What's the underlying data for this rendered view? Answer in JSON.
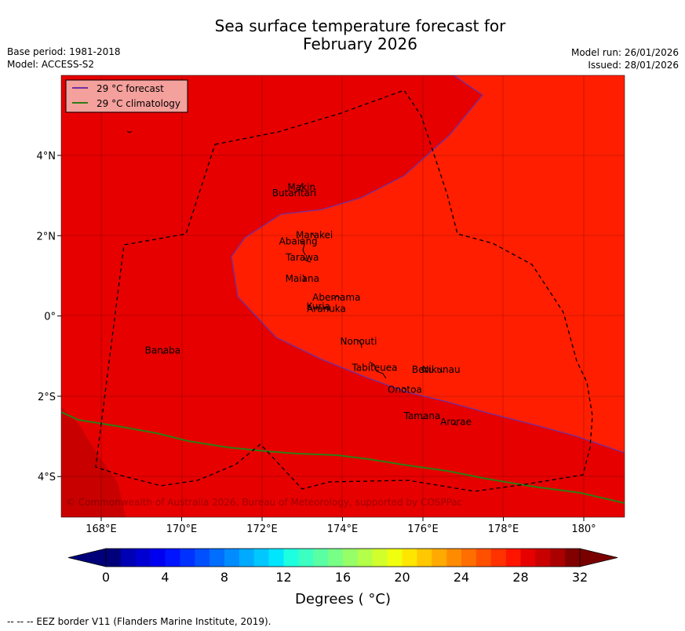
{
  "title_line1": "Sea surface temperature forecast for",
  "title_line2": "February 2026",
  "base_period": "Base period: 1981-2018",
  "model": "Model: ACCESS-S2",
  "model_run": "Model run: 26/01/2026",
  "issued": "Issued: 28/01/2026",
  "legend": {
    "forecast": "29 °C  forecast",
    "climatology": "29 °C  climatology",
    "forecast_color": "#7030a0",
    "climatology_color": "#2e7d14"
  },
  "lon_ticks": [
    "168°E",
    "170°E",
    "172°E",
    "174°E",
    "176°E",
    "178°E",
    "180°"
  ],
  "lat_ticks": [
    "4°N",
    "2°N",
    "0°",
    "2°S",
    "4°S"
  ],
  "islands": [
    {
      "name": "Makin",
      "lon": 172.98,
      "lat": 3.2
    },
    {
      "name": "Butaritari",
      "lon": 172.8,
      "lat": 3.05
    },
    {
      "name": "Marakei",
      "lon": 173.3,
      "lat": 2.0
    },
    {
      "name": "Abaiang",
      "lon": 172.9,
      "lat": 1.85
    },
    {
      "name": "Tarawa",
      "lon": 173.0,
      "lat": 1.45
    },
    {
      "name": "Maiana",
      "lon": 173.0,
      "lat": 0.92
    },
    {
      "name": "Abemama",
      "lon": 173.85,
      "lat": 0.45
    },
    {
      "name": "Kuria",
      "lon": 173.4,
      "lat": 0.22
    },
    {
      "name": "Aranuka",
      "lon": 173.6,
      "lat": 0.17
    },
    {
      "name": "Nonouti",
      "lon": 174.4,
      "lat": -0.65
    },
    {
      "name": "Tabiteuea",
      "lon": 174.8,
      "lat": -1.3
    },
    {
      "name": "Beru",
      "lon": 176.0,
      "lat": -1.35
    },
    {
      "name": "Nikunau",
      "lon": 176.45,
      "lat": -1.35
    },
    {
      "name": "Onotoa",
      "lon": 175.55,
      "lat": -1.85
    },
    {
      "name": "Tamana",
      "lon": 175.98,
      "lat": -2.5
    },
    {
      "name": "Arorae",
      "lon": 176.82,
      "lat": -2.65
    },
    {
      "name": "Banaba",
      "lon": 169.53,
      "lat": -0.87
    }
  ],
  "copyright": "© Commonwealth of Australia 2026, Bureau of Meteorology, supported by COSPPac",
  "colorbar": {
    "ticks": [
      "0",
      "4",
      "8",
      "12",
      "16",
      "20",
      "24",
      "28",
      "32"
    ],
    "label": "Degrees ( °C)",
    "colors": [
      "#00007a",
      "#0000b4",
      "#0000d2",
      "#0000f0",
      "#0014ff",
      "#0032ff",
      "#0050ff",
      "#006eff",
      "#008cff",
      "#00aaff",
      "#00c8ff",
      "#00e6ff",
      "#1effe0",
      "#3cffc2",
      "#5affa4",
      "#78ff86",
      "#96ff68",
      "#b4ff4a",
      "#d2ff2c",
      "#f0ff0e",
      "#ffe600",
      "#ffc800",
      "#ffaa00",
      "#ff8c00",
      "#ff6e00",
      "#ff5000",
      "#ff3200",
      "#ff1400",
      "#e60000",
      "#c80000",
      "#aa0000",
      "#820000"
    ],
    "under_color": "#00007a",
    "over_color": "#7a0000"
  },
  "footer": "--  --  -- EEZ border V11 (Flanders Marine Institute, 2019).",
  "fills": {
    "warm": "#ff1e00",
    "cool": "#e60000",
    "coolest": "#c80000"
  }
}
